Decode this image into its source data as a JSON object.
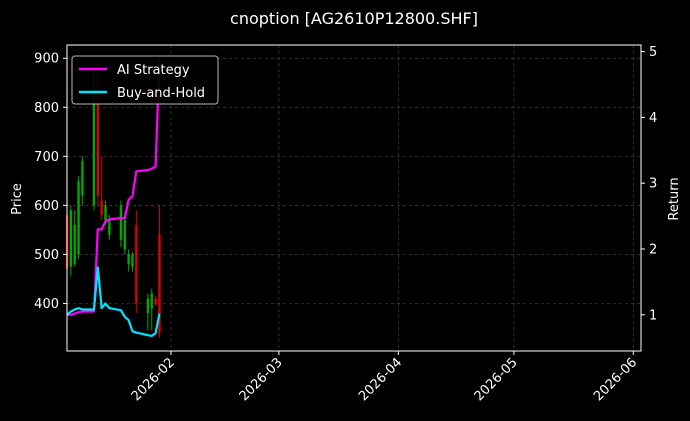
{
  "chart_data": {
    "type": "candlestick-line",
    "title": "cnoption [AG2610P12800.SHF]",
    "ylabel_left": "Price",
    "ylabel_right": "Return",
    "xlabel": "",
    "x_ticks": [
      "2026-02",
      "2026-03",
      "2026-04",
      "2026-05",
      "2026-06"
    ],
    "y_left_ticks": [
      400,
      500,
      600,
      700,
      800,
      900
    ],
    "y_right_ticks": [
      1,
      2,
      3,
      4,
      5
    ],
    "xlim": [
      "2026-01-05",
      "2026-06-03"
    ],
    "ylim_left": [
      303,
      927
    ],
    "ylim_right": [
      0.45,
      5.1
    ],
    "grid": true,
    "legend_position": "top-left",
    "colors": {
      "background": "#000000",
      "up": "#00a800",
      "down": "#e00000",
      "ai_strategy": "#ff00ff",
      "buy_and_hold": "#00e5ff",
      "grid": "#444444"
    },
    "candles": [
      {
        "date": "2026-01-05",
        "open": 580,
        "high": 595,
        "low": 455,
        "close": 470
      },
      {
        "date": "2026-01-06",
        "open": 475,
        "high": 600,
        "low": 455,
        "close": 590
      },
      {
        "date": "2026-01-07",
        "open": 480,
        "high": 590,
        "low": 475,
        "close": 560
      },
      {
        "date": "2026-01-08",
        "open": 500,
        "high": 660,
        "low": 490,
        "close": 650
      },
      {
        "date": "2026-01-09",
        "open": 620,
        "high": 700,
        "low": 600,
        "close": 690
      },
      {
        "date": "2026-01-12",
        "open": 600,
        "high": 880,
        "low": 590,
        "close": 870
      },
      {
        "date": "2026-01-13",
        "open": 860,
        "high": 900,
        "low": 600,
        "close": 620
      },
      {
        "date": "2026-01-14",
        "open": 610,
        "high": 700,
        "low": 570,
        "close": 580
      },
      {
        "date": "2026-01-15",
        "open": 570,
        "high": 610,
        "low": 560,
        "close": 600
      },
      {
        "date": "2026-01-16",
        "open": 540,
        "high": 580,
        "low": 530,
        "close": 570
      },
      {
        "date": "2026-01-19",
        "open": 530,
        "high": 610,
        "low": 515,
        "close": 600
      },
      {
        "date": "2026-01-20",
        "open": 510,
        "high": 580,
        "low": 500,
        "close": 570
      },
      {
        "date": "2026-01-21",
        "open": 480,
        "high": 510,
        "low": 465,
        "close": 500
      },
      {
        "date": "2026-01-22",
        "open": 475,
        "high": 505,
        "low": 465,
        "close": 500
      },
      {
        "date": "2026-01-23",
        "open": 560,
        "high": 590,
        "low": 380,
        "close": 400
      },
      {
        "date": "2026-01-26",
        "open": 380,
        "high": 420,
        "low": 345,
        "close": 410
      },
      {
        "date": "2026-01-27",
        "open": 390,
        "high": 430,
        "low": 345,
        "close": 420
      },
      {
        "date": "2026-01-28",
        "open": 410,
        "high": 415,
        "low": 395,
        "close": 398
      },
      {
        "date": "2026-01-29",
        "open": 540,
        "high": 600,
        "low": 330,
        "close": 340
      }
    ],
    "series": [
      {
        "name": "AI Strategy",
        "axis": "right",
        "x": [
          "2026-01-05",
          "2026-01-06",
          "2026-01-07",
          "2026-01-08",
          "2026-01-09",
          "2026-01-12",
          "2026-01-13",
          "2026-01-14",
          "2026-01-15",
          "2026-01-16",
          "2026-01-19",
          "2026-01-20",
          "2026-01-21",
          "2026-01-22",
          "2026-01-23",
          "2026-01-26",
          "2026-01-27",
          "2026-01-28",
          "2026-01-29"
        ],
        "values": [
          1.0,
          1.0,
          1.02,
          1.04,
          1.05,
          1.05,
          2.3,
          2.3,
          2.42,
          2.45,
          2.47,
          2.47,
          2.75,
          2.8,
          3.18,
          3.2,
          3.22,
          3.25,
          4.9
        ]
      },
      {
        "name": "Buy-and-Hold",
        "axis": "right",
        "x": [
          "2026-01-05",
          "2026-01-06",
          "2026-01-07",
          "2026-01-08",
          "2026-01-09",
          "2026-01-12",
          "2026-01-13",
          "2026-01-14",
          "2026-01-15",
          "2026-01-16",
          "2026-01-19",
          "2026-01-20",
          "2026-01-21",
          "2026-01-22",
          "2026-01-23",
          "2026-01-26",
          "2026-01-27",
          "2026-01-28",
          "2026-01-29"
        ],
        "values": [
          1.0,
          1.05,
          1.08,
          1.1,
          1.08,
          1.08,
          1.72,
          1.1,
          1.17,
          1.1,
          1.07,
          0.97,
          0.92,
          0.75,
          0.73,
          0.69,
          0.68,
          0.72,
          1.02
        ]
      }
    ]
  }
}
